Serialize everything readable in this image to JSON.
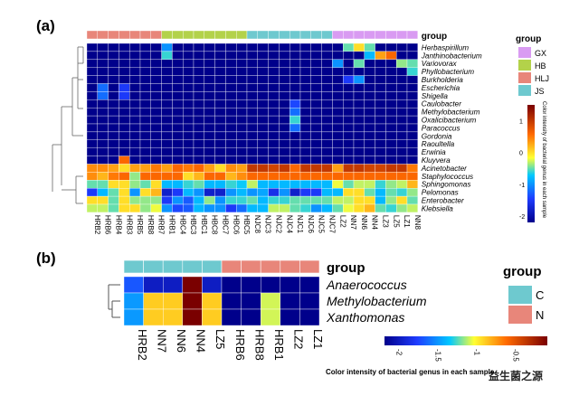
{
  "chart_data": [
    {
      "type": "heatmap",
      "panel_label": "(a)",
      "group_label": "group",
      "groups": [
        {
          "name": "GX",
          "color": "#d99bf2"
        },
        {
          "name": "HB",
          "color": "#b3d24a"
        },
        {
          "name": "HLJ",
          "color": "#e8867a"
        },
        {
          "name": "JS",
          "color": "#6ec9cf"
        }
      ],
      "sample_groups": [
        "HLJ",
        "HLJ",
        "HLJ",
        "HLJ",
        "HLJ",
        "HLJ",
        "HLJ",
        "HB",
        "HB",
        "HB",
        "HB",
        "HB",
        "HB",
        "HB",
        "HB",
        "JS",
        "JS",
        "JS",
        "JS",
        "JS",
        "JS",
        "JS",
        "JS",
        "GX",
        "GX",
        "GX",
        "GX",
        "GX",
        "GX",
        "GX",
        "GX"
      ],
      "samples": [
        "HRB2",
        "HRB6",
        "HRB4",
        "HRB3",
        "HRB5",
        "HRB8",
        "HRB7",
        "HRB1",
        "HBC4",
        "HBC3",
        "HBC1",
        "HBC8",
        "HBC7",
        "HBC6",
        "HBC5",
        "NJC8",
        "NJC3",
        "NJC2",
        "NJC4",
        "NJC1",
        "NJC6",
        "NJC5",
        "NJC7",
        "LZ2",
        "NN7",
        "NN6",
        "NN4",
        "LZ3",
        "LZ5",
        "LZ1",
        "NN8"
      ],
      "genera": [
        "Herbaspirillum",
        "Janthinobacterium",
        "Variovorax",
        "Phyllobacterium",
        "Burkholderia",
        "Escherichia",
        "Shigella",
        "Caulobacter",
        "Methylobacterium",
        "Oxalicibacterium",
        "Paracoccus",
        "Gordonia",
        "Raoultella",
        "Erwinia",
        "Kluyvera",
        "Acinetobacter",
        "Staphylococcus",
        "Sphingomonas",
        "Pelomonas",
        "Enterobacter",
        "Klebsiella"
      ],
      "values": [
        [
          -2.2,
          -2.2,
          -2.2,
          -2.2,
          -2.2,
          -2.2,
          -2.2,
          -1.0,
          -2.2,
          -2.2,
          -2.2,
          -2.2,
          -2.2,
          -2.2,
          -2.2,
          -2.2,
          -2.2,
          -2.2,
          -2.2,
          -2.2,
          -2.2,
          -2.2,
          -2.2,
          -2.2,
          -0.5,
          0.0,
          -0.5,
          -2.2,
          -2.2,
          -2.2,
          -2.2
        ],
        [
          -2.2,
          -2.2,
          -2.2,
          -2.2,
          -2.2,
          -2.2,
          -2.2,
          -0.6,
          -2.2,
          -2.2,
          -2.2,
          -2.2,
          -2.2,
          -2.2,
          -2.2,
          -2.2,
          -2.2,
          -2.2,
          -2.2,
          -2.2,
          -2.2,
          -2.2,
          -2.2,
          -2.2,
          -2.2,
          -2.2,
          -0.8,
          0.3,
          0.6,
          -2.2,
          -2.2
        ],
        [
          -2.2,
          -2.2,
          -2.2,
          -2.2,
          -2.2,
          -2.2,
          -2.2,
          -2.2,
          -2.2,
          -2.2,
          -2.2,
          -2.2,
          -2.2,
          -2.2,
          -2.2,
          -2.2,
          -2.2,
          -2.2,
          -2.2,
          -2.2,
          -2.2,
          -2.2,
          -2.2,
          -1.0,
          -2.2,
          -0.5,
          -2.2,
          -2.2,
          -2.2,
          -0.4,
          -0.5
        ],
        [
          -2.2,
          -2.2,
          -2.2,
          -2.2,
          -2.2,
          -2.2,
          -2.2,
          -2.2,
          -2.2,
          -2.2,
          -2.2,
          -2.2,
          -2.2,
          -2.2,
          -2.2,
          -2.2,
          -2.2,
          -2.2,
          -2.2,
          -2.2,
          -2.2,
          -2.2,
          -2.2,
          -2.2,
          -2.2,
          -2.2,
          -2.2,
          -2.2,
          -2.2,
          -2.2,
          -0.6
        ],
        [
          -2.2,
          -2.2,
          -2.2,
          -2.2,
          -2.2,
          -2.2,
          -2.2,
          -2.2,
          -2.2,
          -2.2,
          -2.2,
          -2.2,
          -2.2,
          -2.2,
          -2.2,
          -2.2,
          -2.2,
          -2.2,
          -2.2,
          -2.2,
          -2.2,
          -2.2,
          -2.2,
          -2.2,
          -1.5,
          -1.0,
          -2.2,
          -2.2,
          -2.2,
          -2.2,
          -2.2
        ],
        [
          -2.2,
          -1.2,
          -2.2,
          -1.5,
          -2.2,
          -2.2,
          -2.2,
          -2.2,
          -2.2,
          -2.2,
          -2.2,
          -2.2,
          -2.2,
          -2.2,
          -2.2,
          -2.2,
          -2.2,
          -2.2,
          -2.2,
          -2.2,
          -2.2,
          -2.2,
          -2.2,
          -2.2,
          -2.2,
          -2.2,
          -2.2,
          -2.2,
          -2.2,
          -2.2,
          -2.2
        ],
        [
          -2.2,
          -1.2,
          -2.2,
          -1.5,
          -2.2,
          -2.2,
          -2.2,
          -2.2,
          -2.2,
          -2.2,
          -2.2,
          -2.2,
          -2.2,
          -2.2,
          -2.2,
          -2.2,
          -2.2,
          -2.2,
          -2.2,
          -2.2,
          -2.2,
          -2.2,
          -2.2,
          -2.2,
          -2.2,
          -2.2,
          -2.2,
          -2.2,
          -2.2,
          -2.2,
          -2.2
        ],
        [
          -2.2,
          -2.2,
          -2.2,
          -2.2,
          -2.2,
          -2.2,
          -2.2,
          -2.2,
          -2.2,
          -2.2,
          -2.2,
          -2.2,
          -2.2,
          -2.2,
          -2.2,
          -2.2,
          -2.2,
          -2.2,
          -2.2,
          -1.4,
          -2.2,
          -2.2,
          -2.2,
          -2.2,
          -2.2,
          -2.2,
          -2.2,
          -2.2,
          -2.2,
          -2.2,
          -2.2
        ],
        [
          -2.2,
          -2.2,
          -2.2,
          -2.2,
          -2.2,
          -2.2,
          -2.2,
          -2.2,
          -2.2,
          -2.2,
          -2.2,
          -2.2,
          -2.2,
          -2.2,
          -2.2,
          -2.2,
          -2.2,
          -2.2,
          -2.2,
          -1.2,
          -2.2,
          -2.2,
          -2.2,
          -2.2,
          -2.2,
          -2.2,
          -2.2,
          -2.2,
          -2.2,
          -2.2,
          -2.2
        ],
        [
          -2.2,
          -2.2,
          -2.2,
          -2.2,
          -2.2,
          -2.2,
          -2.2,
          -2.2,
          -2.2,
          -2.2,
          -2.2,
          -2.2,
          -2.2,
          -2.2,
          -2.2,
          -2.2,
          -2.2,
          -2.2,
          -2.2,
          -0.6,
          -2.2,
          -2.2,
          -2.2,
          -2.2,
          -2.2,
          -2.2,
          -2.2,
          -2.2,
          -2.2,
          -2.2,
          -2.2
        ],
        [
          -2.2,
          -2.2,
          -2.2,
          -2.2,
          -2.2,
          -2.2,
          -2.2,
          -2.2,
          -2.2,
          -2.2,
          -2.2,
          -2.2,
          -2.2,
          -2.2,
          -2.2,
          -2.2,
          -2.2,
          -2.2,
          -2.2,
          -1.2,
          -2.2,
          -2.2,
          -2.2,
          -2.2,
          -2.2,
          -2.2,
          -2.2,
          -2.2,
          -2.2,
          -2.2,
          -2.2
        ],
        [
          -2.2,
          -2.2,
          -2.2,
          -2.2,
          -2.2,
          -2.2,
          -2.2,
          -2.2,
          -2.2,
          -2.2,
          -2.2,
          -2.2,
          -2.2,
          -2.2,
          -2.2,
          -2.2,
          -2.2,
          -2.2,
          -2.2,
          -2.2,
          -2.2,
          -2.2,
          -2.2,
          -2.2,
          -2.2,
          -2.2,
          -2.2,
          -2.2,
          -2.2,
          -2.2,
          -2.2
        ],
        [
          -2.2,
          -2.2,
          -2.2,
          -2.2,
          -2.2,
          -2.2,
          -2.2,
          -2.2,
          -2.2,
          -2.2,
          -2.2,
          -2.2,
          -2.2,
          -2.2,
          -2.2,
          -2.2,
          -2.2,
          -2.2,
          -2.2,
          -2.2,
          -2.2,
          -2.2,
          -2.2,
          -2.2,
          -2.2,
          -2.2,
          -2.2,
          -2.2,
          -2.2,
          -2.2,
          -2.2
        ],
        [
          -2.2,
          -2.2,
          -2.2,
          -2.2,
          -2.2,
          -2.2,
          -2.2,
          -2.2,
          -2.2,
          -2.2,
          -2.2,
          -2.2,
          -2.2,
          -2.2,
          -2.2,
          -2.2,
          -2.2,
          -2.2,
          -2.2,
          -2.2,
          -2.2,
          -2.2,
          -2.2,
          -2.2,
          -2.2,
          -2.2,
          -2.2,
          -2.2,
          -2.2,
          -2.2,
          -2.2
        ],
        [
          -2.2,
          -2.2,
          -2.2,
          0.6,
          -2.2,
          -2.2,
          -2.2,
          -2.2,
          -2.2,
          -2.2,
          -2.2,
          -2.2,
          -2.2,
          -2.2,
          -2.2,
          -2.2,
          -2.2,
          -2.2,
          -2.2,
          -2.2,
          -2.2,
          -2.2,
          -2.2,
          -2.2,
          -2.2,
          -2.2,
          -2.2,
          -2.2,
          -2.2,
          -2.2,
          -2.2
        ],
        [
          0.4,
          0.4,
          0.3,
          0.0,
          0.3,
          0.3,
          0.5,
          0.3,
          0.6,
          0.5,
          0.6,
          0.3,
          0.0,
          0.4,
          0.3,
          1.0,
          1.0,
          0.9,
          1.0,
          0.6,
          1.0,
          1.0,
          1.0,
          0.3,
          1.0,
          1.0,
          0.9,
          0.9,
          1.0,
          1.0,
          0.5
        ],
        [
          0.4,
          0.2,
          0.5,
          0.6,
          -0.4,
          0.6,
          0.6,
          0.6,
          0.6,
          0.0,
          0.2,
          0.6,
          0.6,
          0.2,
          0.4,
          0.6,
          0.6,
          0.6,
          0.6,
          0.6,
          0.6,
          0.6,
          0.6,
          0.6,
          0.6,
          0.6,
          0.6,
          0.6,
          0.6,
          0.6,
          0.6
        ],
        [
          -0.5,
          -0.5,
          0.0,
          0.0,
          -0.4,
          -0.5,
          0.0,
          -0.8,
          -0.8,
          -0.6,
          -0.5,
          -0.8,
          -0.8,
          -0.6,
          -0.7,
          -0.3,
          -0.8,
          -0.8,
          -0.8,
          -0.8,
          -0.8,
          -0.8,
          -0.8,
          -0.2,
          -0.5,
          -0.3,
          -0.3,
          -0.6,
          -0.4,
          -0.3,
          0.2
        ],
        [
          -1.5,
          -0.8,
          -0.5,
          0.0,
          -1.0,
          0.0,
          0.2,
          -1.8,
          -1.5,
          -0.8,
          -1.0,
          -1.8,
          -1.8,
          -1.0,
          -0.8,
          -1.0,
          -0.9,
          -1.6,
          -1.0,
          -1.8,
          -1.5,
          -1.5,
          -0.8,
          -0.8,
          0.0,
          0.0,
          -0.5,
          -0.8,
          -0.5,
          -0.6,
          -0.4
        ],
        [
          0.0,
          0.0,
          -0.5,
          0.0,
          -0.4,
          -0.4,
          -0.4,
          -1.5,
          -1.0,
          -1.3,
          -0.8,
          -0.4,
          -1.0,
          -0.6,
          -0.6,
          -0.5,
          -0.8,
          -0.6,
          -0.6,
          -0.5,
          -0.5,
          -0.5,
          -0.5,
          -0.3,
          -0.3,
          0.0,
          0.0,
          -0.8,
          -0.4,
          0.0,
          -0.5
        ],
        [
          -0.3,
          -0.3,
          -0.5,
          0.0,
          0.0,
          -0.4,
          -0.2,
          -1.0,
          -1.4,
          -1.3,
          -0.8,
          -1.0,
          -1.0,
          -1.5,
          -1.2,
          -0.8,
          -0.8,
          -0.3,
          -0.3,
          -0.5,
          -0.6,
          -1.0,
          -0.8,
          -0.5,
          -0.2,
          0.0,
          0.2,
          -0.5,
          -0.6,
          -0.4,
          -0.3
        ]
      ],
      "colorbar": {
        "ticks": [
          "1",
          "0",
          "-1",
          "-2"
        ],
        "range": [
          -2.2,
          1.5
        ],
        "label": "Color intensity of bacterial genus in each sample"
      }
    },
    {
      "type": "heatmap",
      "panel_label": "(b)",
      "group_label": "group",
      "groups": [
        {
          "name": "C",
          "color": "#6ec9cf"
        },
        {
          "name": "N",
          "color": "#e8867a"
        }
      ],
      "sample_groups": [
        "C",
        "C",
        "C",
        "C",
        "C",
        "N",
        "N",
        "N",
        "N",
        "N"
      ],
      "samples": [
        "HRB2",
        "NN7",
        "NN6",
        "NN4",
        "LZ5",
        "HRB6",
        "HRB8",
        "HRB1",
        "LZ2",
        "LZ1"
      ],
      "genera": [
        "Anaerococcus",
        "Methylobacterium",
        "Xanthomonas"
      ],
      "values": [
        [
          -1.8,
          -2.1,
          -2.1,
          -0.1,
          -2.1,
          -2.3,
          -2.3,
          -2.3,
          -2.3,
          -2.3
        ],
        [
          -1.6,
          -1.0,
          -1.0,
          -0.2,
          -1.0,
          -2.3,
          -2.3,
          -1.2,
          -2.3,
          -2.3
        ],
        [
          -1.6,
          -1.0,
          -1.0,
          -0.2,
          -1.0,
          -2.3,
          -2.3,
          -1.2,
          -2.3,
          -2.3
        ]
      ],
      "colorbar": {
        "ticks": [
          "-2",
          "-1.5",
          "-1",
          "-0.5"
        ],
        "range": [
          -2.3,
          -0.2
        ],
        "label": "Color intensity of bacterial genus in each sample"
      }
    }
  ],
  "watermark": "益生菌之源"
}
